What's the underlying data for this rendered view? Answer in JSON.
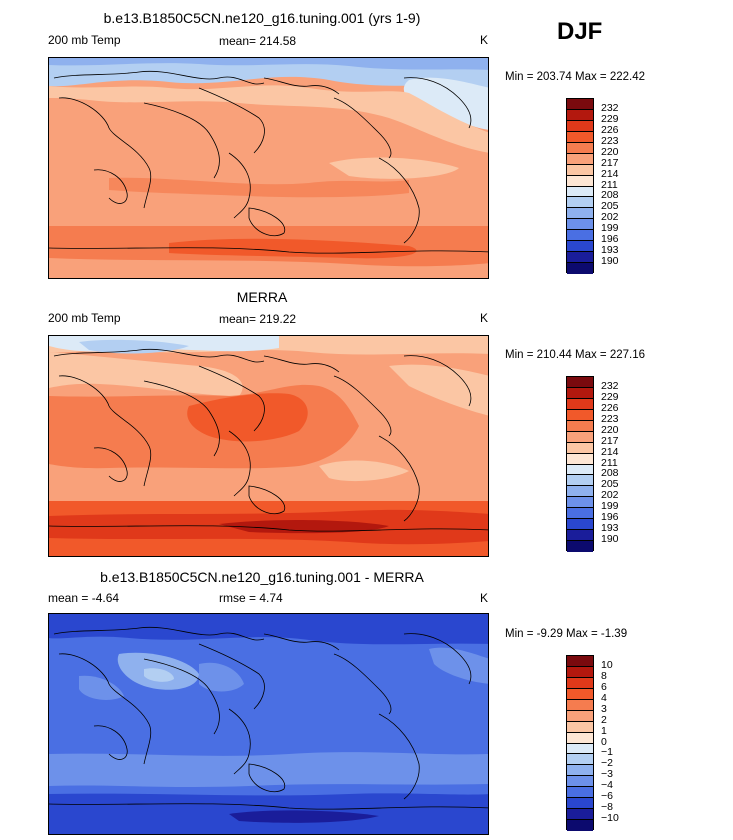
{
  "season": "DJF",
  "panels": [
    {
      "title": "b.e13.B1850C5CN.ne120_g16.tuning.001 (yrs 1-9)",
      "left_label": "200 mb Temp",
      "mid_label": "mean= 214.58",
      "units": "K",
      "minmax": "Min = 203.74  Max = 222.42",
      "colorbar_labels": [
        "232",
        "229",
        "226",
        "223",
        "220",
        "217",
        "214",
        "211",
        "208",
        "205",
        "202",
        "199",
        "196",
        "193",
        "190"
      ]
    },
    {
      "title": "MERRA",
      "left_label": "200 mb Temp",
      "mid_label": "mean= 219.22",
      "units": "K",
      "minmax": "Min = 210.44  Max = 227.16",
      "colorbar_labels": [
        "232",
        "229",
        "226",
        "223",
        "220",
        "217",
        "214",
        "211",
        "208",
        "205",
        "202",
        "199",
        "196",
        "193",
        "190"
      ]
    },
    {
      "title": "b.e13.B1850C5CN.ne120_g16.tuning.001 - MERRA",
      "left_label": "mean =   -4.64",
      "mid_label": "rmse =   4.74",
      "units": "K",
      "minmax": "Min =  -9.29  Max =  -1.39",
      "colorbar_labels": [
        "10",
        "8",
        "6",
        "4",
        "3",
        "2",
        "1",
        "0",
        "−1",
        "−2",
        "−3",
        "−4",
        "−6",
        "−8",
        "−10"
      ]
    }
  ],
  "colorbar_colors": [
    "#7a0a0e",
    "#b3180e",
    "#e0391a",
    "#f1592a",
    "#f57c4f",
    "#f9a17a",
    "#fbc6a4",
    "#fde6d4",
    "#dceaf7",
    "#b3cff2",
    "#8fb1ee",
    "#6d91ea",
    "#4a6fe3",
    "#2a47cf",
    "#1a1d9a",
    "#0c0a6e"
  ]
}
